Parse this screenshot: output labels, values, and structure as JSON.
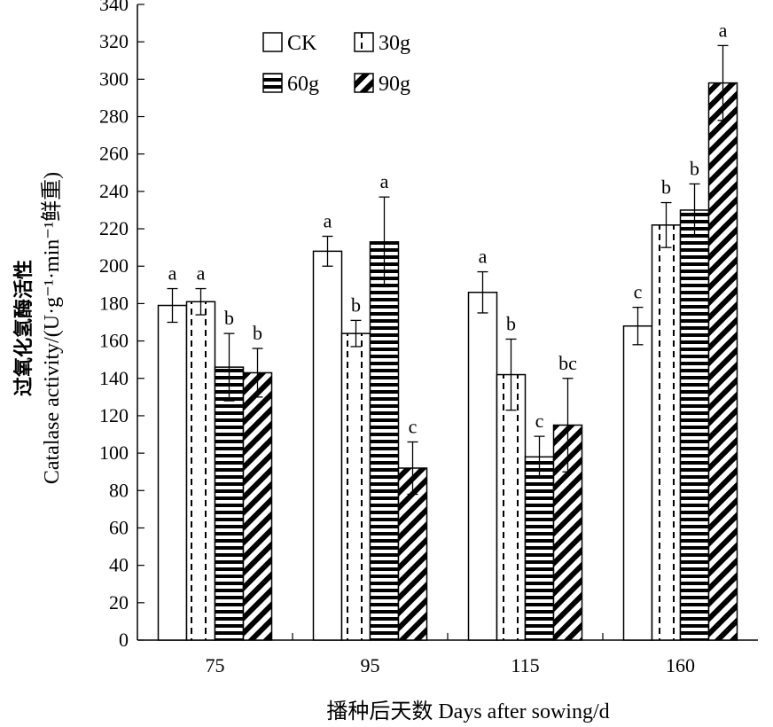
{
  "chart_data": {
    "type": "bar",
    "categories": [
      "75",
      "95",
      "115",
      "160"
    ],
    "series": [
      {
        "name": "CK",
        "values": [
          179,
          208,
          186,
          168
        ],
        "errors": [
          9,
          8,
          11,
          10
        ],
        "letters": [
          "a",
          "a",
          "a",
          "c"
        ],
        "pattern": "blank"
      },
      {
        "name": "30g",
        "values": [
          181,
          164,
          142,
          222
        ],
        "errors": [
          7,
          7,
          19,
          12
        ],
        "letters": [
          "a",
          "b",
          "b",
          "b"
        ],
        "pattern": "dashed-vertical"
      },
      {
        "name": "60g",
        "values": [
          146,
          213,
          98,
          230
        ],
        "errors": [
          18,
          24,
          11,
          14
        ],
        "letters": [
          "b",
          "a",
          "c",
          "b"
        ],
        "pattern": "horizontal-stripes"
      },
      {
        "name": "90g",
        "values": [
          143,
          92,
          115,
          298
        ],
        "errors": [
          13,
          14,
          25,
          20
        ],
        "letters": [
          "b",
          "c",
          "bc",
          "a"
        ],
        "pattern": "diagonal-stripes"
      }
    ],
    "ylim": [
      0,
      340
    ],
    "yticks": [
      "0",
      "20",
      "40",
      "60",
      "80",
      "100",
      "120",
      "140",
      "160",
      "180",
      "200",
      "220",
      "240",
      "260",
      "280",
      "300",
      "320",
      "340"
    ],
    "xlabel": "播种后天数 Days after sowing/d",
    "ylabel_cn": "过氧化氢酶活性",
    "ylabel_en": "Catalase activity/(U·g⁻¹·min⁻¹鲜重)",
    "legend_position": "top-left",
    "grid": false,
    "colors": {
      "ink": "#000000",
      "paper": "#ffffff"
    }
  }
}
